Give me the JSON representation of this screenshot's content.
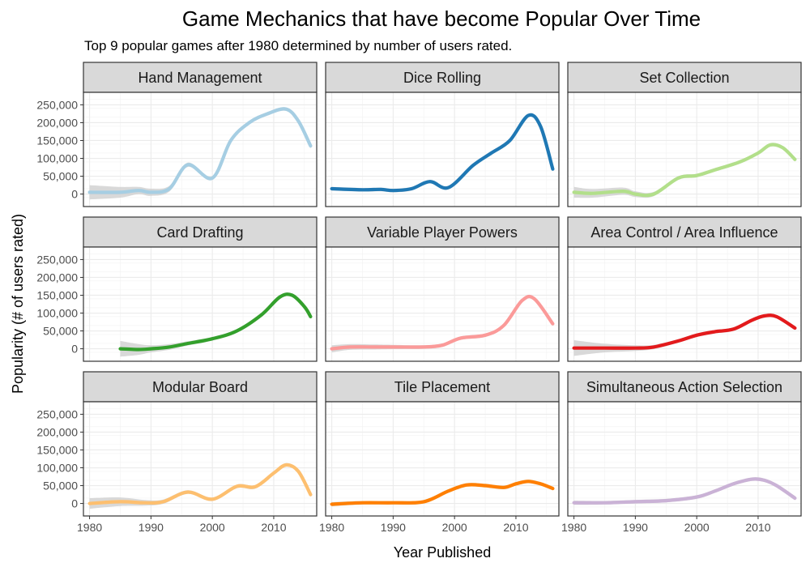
{
  "chart_data": {
    "type": "line",
    "title": "Game Mechanics that have become Popular Over Time",
    "subtitle": "Top 9 popular games after 1980 determined by number of users rated.",
    "xlabel": "Year Published",
    "ylabel": "Popularity (# of users rated)",
    "xlim": [
      1979,
      2017
    ],
    "ylim": [
      -35000,
      285000
    ],
    "x_ticks": [
      1980,
      1990,
      2000,
      2010
    ],
    "x_tick_labels": [
      "1980",
      "1990",
      "2000",
      "2010"
    ],
    "y_ticks": [
      0,
      50000,
      100000,
      150000,
      200000,
      250000
    ],
    "y_tick_labels": [
      "0",
      "50,000",
      "100,000",
      "150,000",
      "200,000",
      "250,000"
    ],
    "grid": true,
    "confidence_band_color": "#cccccc",
    "facet_layout": {
      "rows": 3,
      "cols": 3
    },
    "series": [
      {
        "name": "Hand Management",
        "color": "#a6cee3",
        "x": [
          1980,
          1985,
          1988,
          1990,
          1993,
          1996,
          2000,
          2003,
          2006,
          2009,
          2012,
          2014,
          2016
        ],
        "y": [
          5000,
          5000,
          10000,
          5000,
          15000,
          82000,
          45000,
          150000,
          200000,
          225000,
          238000,
          205000,
          135000
        ],
        "band": [
          20000,
          15000,
          10000,
          10000,
          8000,
          6000,
          5000,
          5000,
          5000,
          5000,
          5000,
          5000,
          8000
        ]
      },
      {
        "name": "Dice Rolling",
        "color": "#1f78b4",
        "x": [
          1980,
          1985,
          1988,
          1990,
          1993,
          1996,
          1999,
          2003,
          2006,
          2009,
          2012,
          2014,
          2016
        ],
        "y": [
          15000,
          12000,
          13000,
          10000,
          15000,
          35000,
          18000,
          80000,
          115000,
          150000,
          220000,
          190000,
          70000
        ],
        "band": [
          5000,
          5000,
          5000,
          5000,
          5000,
          5000,
          5000,
          5000,
          5000,
          5000,
          5000,
          5000,
          6000
        ]
      },
      {
        "name": "Set Collection",
        "color": "#b2df8a",
        "x": [
          1980,
          1983,
          1988,
          1990,
          1993,
          1997,
          2000,
          2003,
          2007,
          2010,
          2012,
          2014,
          2016
        ],
        "y": [
          5000,
          2000,
          8000,
          0,
          0,
          45000,
          52000,
          68000,
          90000,
          115000,
          138000,
          130000,
          97000
        ],
        "band": [
          15000,
          12000,
          10000,
          8000,
          6000,
          5000,
          5000,
          5000,
          5000,
          5000,
          5000,
          5000,
          6000
        ]
      },
      {
        "name": "Card Drafting",
        "color": "#33a02c",
        "x": [
          1985,
          1988,
          1990,
          1993,
          1996,
          2000,
          2004,
          2008,
          2011,
          2013,
          2015,
          2016
        ],
        "y": [
          0,
          -2000,
          0,
          5000,
          15000,
          28000,
          50000,
          95000,
          145000,
          150000,
          118000,
          90000
        ],
        "band": [
          22000,
          15000,
          10000,
          8000,
          6000,
          5000,
          5000,
          5000,
          5000,
          5000,
          5000,
          6000
        ]
      },
      {
        "name": "Variable Player Powers",
        "color": "#fb9a99",
        "x": [
          1980,
          1983,
          1987,
          1990,
          1995,
          1998,
          2001,
          2005,
          2008,
          2011,
          2013,
          2016
        ],
        "y": [
          0,
          5000,
          5000,
          5000,
          5000,
          10000,
          30000,
          38000,
          65000,
          135000,
          140000,
          70000
        ],
        "band": [
          10000,
          8000,
          7000,
          6000,
          5000,
          5000,
          5000,
          5000,
          5000,
          5000,
          5000,
          6000
        ]
      },
      {
        "name": "Area Control / Area Influence",
        "color": "#e31a1c",
        "x": [
          1980,
          1985,
          1990,
          1993,
          1997,
          2000,
          2003,
          2006,
          2009,
          2011,
          2013,
          2016
        ],
        "y": [
          2000,
          2000,
          2000,
          5000,
          22000,
          38000,
          48000,
          55000,
          80000,
          92000,
          90000,
          58000
        ],
        "band": [
          22000,
          12000,
          8000,
          6000,
          5000,
          5000,
          5000,
          5000,
          5000,
          5000,
          5000,
          6000
        ]
      },
      {
        "name": "Modular Board",
        "color": "#fdbf6f",
        "x": [
          1980,
          1985,
          1989,
          1992,
          1996,
          2000,
          2004,
          2007,
          2010,
          2012,
          2014,
          2016
        ],
        "y": [
          0,
          5000,
          2000,
          5000,
          32000,
          12000,
          48000,
          47000,
          85000,
          108000,
          90000,
          25000
        ],
        "band": [
          15000,
          12000,
          8000,
          6000,
          5000,
          5000,
          5000,
          5000,
          5000,
          5000,
          5000,
          7000
        ]
      },
      {
        "name": "Tile Placement",
        "color": "#ff7f00",
        "x": [
          1980,
          1985,
          1990,
          1995,
          1999,
          2002,
          2005,
          2008,
          2010,
          2012,
          2014,
          2016
        ],
        "y": [
          -2000,
          2000,
          2000,
          5000,
          35000,
          52000,
          50000,
          45000,
          55000,
          62000,
          55000,
          42000
        ],
        "band": [
          6000,
          5000,
          5000,
          5000,
          5000,
          5000,
          5000,
          5000,
          5000,
          5000,
          5000,
          5000
        ]
      },
      {
        "name": "Simultaneous Action Selection",
        "color": "#cab2d6",
        "x": [
          1980,
          1985,
          1990,
          1995,
          2000,
          2003,
          2006,
          2009,
          2011,
          2013,
          2016
        ],
        "y": [
          2000,
          2000,
          5000,
          8000,
          18000,
          35000,
          55000,
          68000,
          65000,
          50000,
          15000
        ],
        "band": [
          6000,
          5000,
          5000,
          5000,
          5000,
          5000,
          5000,
          5000,
          5000,
          5000,
          6000
        ]
      }
    ]
  }
}
